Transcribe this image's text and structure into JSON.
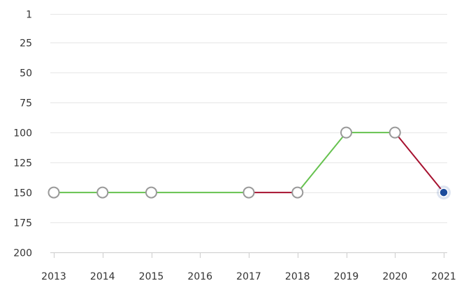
{
  "chart_data": {
    "type": "line",
    "y_reversed": true,
    "ylim": [
      1,
      200
    ],
    "y_ticks": [
      1,
      25,
      50,
      75,
      100,
      125,
      150,
      175,
      200
    ],
    "categories": [
      "2013",
      "2014",
      "2015",
      "2016",
      "2017",
      "2018",
      "2019",
      "2020",
      "2021"
    ],
    "points": [
      {
        "x": "2013",
        "y": 150
      },
      {
        "x": "2014",
        "y": 150
      },
      {
        "x": "2015",
        "y": 150
      },
      {
        "x": "2017",
        "y": 150
      },
      {
        "x": "2018",
        "y": 150
      },
      {
        "x": "2019",
        "y": 100
      },
      {
        "x": "2020",
        "y": 100
      },
      {
        "x": "2021",
        "y": 150
      }
    ],
    "grid": true,
    "legend": "none"
  },
  "colors": {
    "improve": "#66c24f",
    "decline": "#a6112f",
    "flat": "#66c24f",
    "marker_stroke": "#999999",
    "marker_fill": "#ffffff",
    "last_marker": "#1c4c9c"
  }
}
